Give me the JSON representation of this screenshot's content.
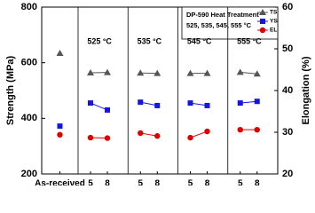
{
  "chart_data": {
    "type": "line",
    "categories": [
      "As-received",
      "5",
      "8",
      "5",
      "8",
      "5",
      "8",
      "5",
      "8"
    ],
    "group_labels": [
      "525 °C",
      "535 °C",
      "545 °C",
      "555 °C"
    ],
    "ylabel": "Strength (MPa)",
    "y2label": "Elongation (%)",
    "ylim": [
      200,
      800
    ],
    "yticks": [
      200,
      400,
      600,
      800
    ],
    "y2lim": [
      20,
      60
    ],
    "y2ticks": [
      20,
      30,
      40,
      50,
      60
    ],
    "legend": {
      "title": [
        "DP-590 Heat Treatment",
        "525, 535, 545, 555 °C"
      ],
      "position": "upper right"
    },
    "series": [
      {
        "name": "TS",
        "color": "#555555",
        "marker": "triangle",
        "values": [
          634,
          564,
          565,
          563,
          562,
          562,
          562,
          566,
          560
        ]
      },
      {
        "name": "YS",
        "color": "#1515e0",
        "marker": "square",
        "values": [
          372,
          455,
          430,
          458,
          446,
          455,
          446,
          455,
          461
        ]
      },
      {
        "name": "EL",
        "color": "#e00000",
        "marker": "circle",
        "axis": "y2",
        "values": [
          29.4,
          28.7,
          28.6,
          29.8,
          29.1,
          28.7,
          30.2,
          30.6,
          30.6
        ]
      }
    ]
  }
}
